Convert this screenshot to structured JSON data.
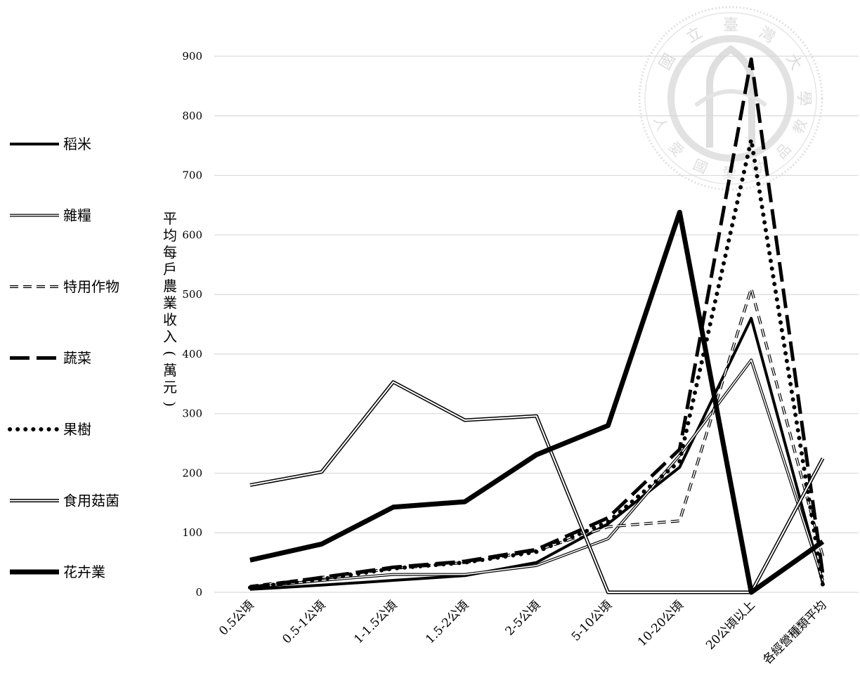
{
  "chart_data": {
    "type": "line",
    "title": "",
    "xlabel": "",
    "ylabel": "平均每戶農業收入(萬元)",
    "ylim": [
      0,
      900
    ],
    "yticks": [
      0,
      100,
      200,
      300,
      400,
      500,
      600,
      700,
      800,
      900
    ],
    "grid": "horizontal",
    "legend_position": "left",
    "categories": [
      "0.5公頃",
      "0.5-1公頃",
      "1-1.5公頃",
      "1.5-2公頃",
      "2-5公頃",
      "5-10公頃",
      "10-20公頃",
      "20公頃以上",
      "各經營種類平均"
    ],
    "series": [
      {
        "name": "稻米",
        "style": "solid-thick",
        "values": [
          5,
          12,
          20,
          28,
          50,
          115,
          210,
          460,
          15
        ]
      },
      {
        "name": "雜糧",
        "style": "double-thin",
        "values": [
          8,
          20,
          30,
          30,
          45,
          90,
          230,
          390,
          20
        ]
      },
      {
        "name": "特用作物",
        "style": "dashed-hollow",
        "values": [
          10,
          25,
          40,
          50,
          70,
          110,
          120,
          510,
          60
        ]
      },
      {
        "name": "蔬菜",
        "style": "long-dash",
        "values": [
          8,
          25,
          42,
          52,
          72,
          125,
          240,
          895,
          30
        ]
      },
      {
        "name": "果樹",
        "style": "dotted",
        "values": [
          8,
          22,
          40,
          50,
          68,
          118,
          220,
          760,
          12
        ]
      },
      {
        "name": "食用菇菌",
        "style": "double",
        "values": [
          180,
          202,
          353,
          289,
          296,
          0,
          0,
          0,
          225
        ]
      },
      {
        "name": "花卉業",
        "style": "solid-bold",
        "values": [
          54,
          81,
          143,
          152,
          231,
          280,
          638,
          0,
          85
        ]
      }
    ]
  },
  "watermark": {
    "type": "seal",
    "text_top": "國立臺灣大學",
    "text_bottom": "人愛國愛動品教"
  },
  "colors": {
    "line": "#000000",
    "grid": "#d9d9d9",
    "watermark": "#d0d0d0"
  }
}
